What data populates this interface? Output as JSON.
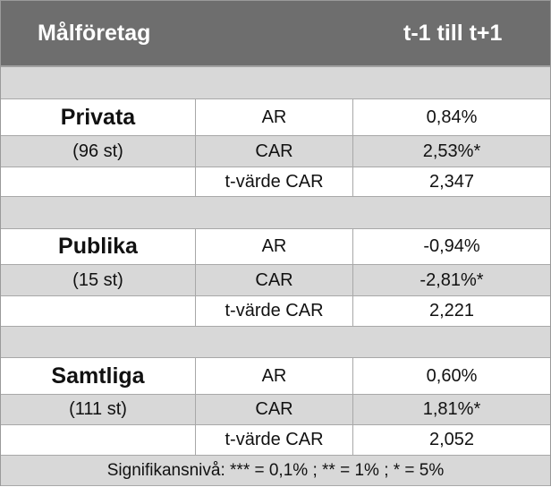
{
  "header": {
    "col1": "Målföretag",
    "col2": "t-1 till t+1"
  },
  "groups": [
    {
      "name": "Privata",
      "count": "(96 st)",
      "rows": [
        {
          "metric": "AR",
          "value": "0,84%"
        },
        {
          "metric": "CAR",
          "value": "2,53%*"
        },
        {
          "metric": "t-värde CAR",
          "value": "2,347"
        }
      ]
    },
    {
      "name": "Publika",
      "count": "(15 st)",
      "rows": [
        {
          "metric": "AR",
          "value": "-0,94%"
        },
        {
          "metric": "CAR",
          "value": "-2,81%*"
        },
        {
          "metric": "t-värde CAR",
          "value": "2,221"
        }
      ]
    },
    {
      "name": "Samtliga",
      "count": "(111 st)",
      "rows": [
        {
          "metric": "AR",
          "value": "0,60%"
        },
        {
          "metric": "CAR",
          "value": "1,81%*"
        },
        {
          "metric": "t-värde CAR",
          "value": "2,052"
        }
      ]
    }
  ],
  "footer": "Signifikansnivå: *** = 0,1% ; ** = 1% ; * = 5%"
}
